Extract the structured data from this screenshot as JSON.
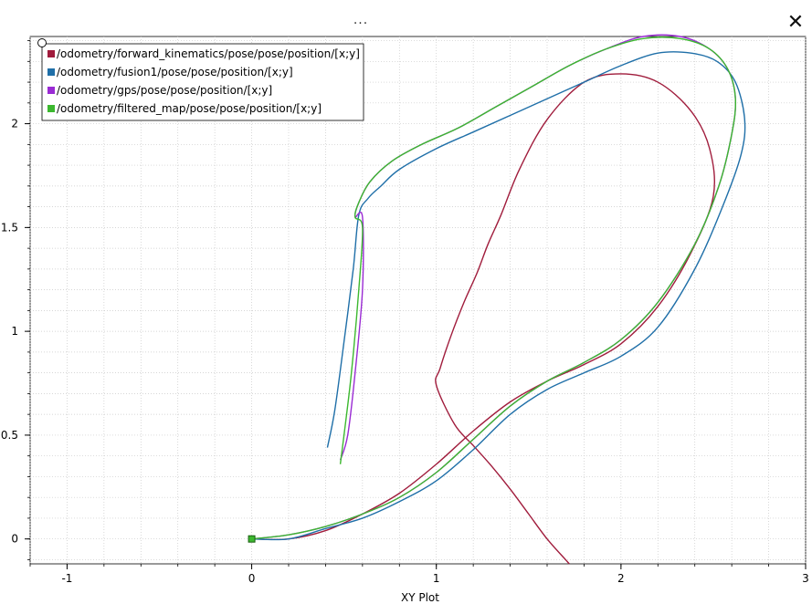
{
  "window": {
    "title_dots": "...",
    "close_glyph": "✕"
  },
  "chart_data": {
    "type": "line",
    "title": "",
    "xlabel": "XY Plot",
    "ylabel": "",
    "xlim": [
      -1.2,
      3.0
    ],
    "ylim": [
      -0.12,
      2.42
    ],
    "xticks": [
      -1,
      0,
      1,
      2,
      3
    ],
    "yticks": [
      0,
      0.5,
      1,
      1.5,
      2
    ],
    "grid": true,
    "legend_position": "top-left",
    "series": [
      {
        "name": "/odometry/forward_kinematics/pose/pose/position/[x;y]",
        "color": "#a01c3c",
        "x": [
          0.0,
          0.2,
          0.4,
          0.6,
          0.8,
          1.0,
          1.2,
          1.4,
          1.6,
          1.8,
          2.0,
          2.2,
          2.38,
          2.5,
          2.48,
          2.38,
          2.2,
          2.0,
          1.8,
          1.6,
          1.45,
          1.35,
          1.28,
          1.22,
          1.15,
          1.08,
          1.02,
          1.0,
          1.1,
          1.2,
          1.3,
          1.4,
          1.5,
          1.6,
          1.7,
          1.72
        ],
        "y": [
          0.0,
          0.0,
          0.04,
          0.12,
          0.22,
          0.36,
          0.52,
          0.66,
          0.76,
          0.84,
          0.94,
          1.12,
          1.38,
          1.65,
          1.88,
          2.06,
          2.2,
          2.24,
          2.2,
          2.02,
          1.78,
          1.56,
          1.42,
          1.28,
          1.14,
          0.98,
          0.82,
          0.74,
          0.55,
          0.45,
          0.35,
          0.24,
          0.12,
          0.0,
          -0.1,
          -0.12
        ]
      },
      {
        "name": "/odometry/fusion1/pose/pose/position/[x;y]",
        "color": "#1f6fa8",
        "x": [
          0.0,
          0.2,
          0.4,
          0.6,
          0.8,
          1.0,
          1.2,
          1.4,
          1.6,
          1.8,
          2.0,
          2.2,
          2.4,
          2.55,
          2.65,
          2.67,
          2.62,
          2.52,
          2.38,
          2.2,
          2.0,
          1.8,
          1.6,
          1.4,
          1.2,
          1.0,
          0.8,
          0.7,
          0.63,
          0.58,
          0.55,
          0.5,
          0.45,
          0.41
        ],
        "y": [
          0.0,
          0.0,
          0.05,
          0.1,
          0.18,
          0.28,
          0.43,
          0.6,
          0.72,
          0.8,
          0.88,
          1.02,
          1.3,
          1.6,
          1.85,
          2.02,
          2.2,
          2.3,
          2.34,
          2.34,
          2.28,
          2.2,
          2.12,
          2.04,
          1.96,
          1.88,
          1.78,
          1.7,
          1.64,
          1.56,
          1.3,
          0.95,
          0.62,
          0.44
        ]
      },
      {
        "name": "/odometry/gps/pose/pose/position/[x;y]",
        "color": "#9a2bd4",
        "x": [
          0.0,
          0.2,
          0.4,
          0.6,
          0.8,
          1.0,
          1.2,
          1.4,
          1.6,
          1.8,
          2.0,
          2.2,
          2.4,
          2.53,
          2.6,
          2.62,
          2.58,
          2.48,
          2.32,
          2.12,
          1.92,
          1.72,
          1.52,
          1.32,
          1.12,
          0.92,
          0.76,
          0.64,
          0.58,
          0.56,
          0.6,
          0.6,
          0.56,
          0.52,
          0.48
        ],
        "y": [
          0.0,
          0.02,
          0.06,
          0.12,
          0.2,
          0.32,
          0.48,
          0.64,
          0.76,
          0.85,
          0.96,
          1.14,
          1.42,
          1.7,
          1.95,
          2.12,
          2.26,
          2.36,
          2.42,
          2.42,
          2.36,
          2.28,
          2.18,
          2.08,
          1.98,
          1.9,
          1.82,
          1.72,
          1.62,
          1.55,
          1.55,
          1.2,
          0.8,
          0.5,
          0.38
        ]
      },
      {
        "name": "/odometry/filtered_map/pose/pose/position/[x;y]",
        "color": "#3cb82f",
        "x": [
          0.0,
          0.2,
          0.4,
          0.6,
          0.8,
          1.0,
          1.2,
          1.4,
          1.6,
          1.8,
          2.0,
          2.2,
          2.4,
          2.53,
          2.6,
          2.62,
          2.58,
          2.48,
          2.32,
          2.12,
          1.92,
          1.72,
          1.52,
          1.32,
          1.12,
          0.92,
          0.76,
          0.64,
          0.58,
          0.56,
          0.6,
          0.58,
          0.54,
          0.5,
          0.48
        ],
        "y": [
          0.0,
          0.02,
          0.06,
          0.12,
          0.2,
          0.32,
          0.48,
          0.64,
          0.76,
          0.85,
          0.96,
          1.14,
          1.42,
          1.7,
          1.95,
          2.12,
          2.26,
          2.36,
          2.41,
          2.41,
          2.36,
          2.28,
          2.18,
          2.08,
          1.98,
          1.9,
          1.82,
          1.72,
          1.62,
          1.55,
          1.5,
          1.2,
          0.8,
          0.5,
          0.36
        ]
      }
    ]
  }
}
